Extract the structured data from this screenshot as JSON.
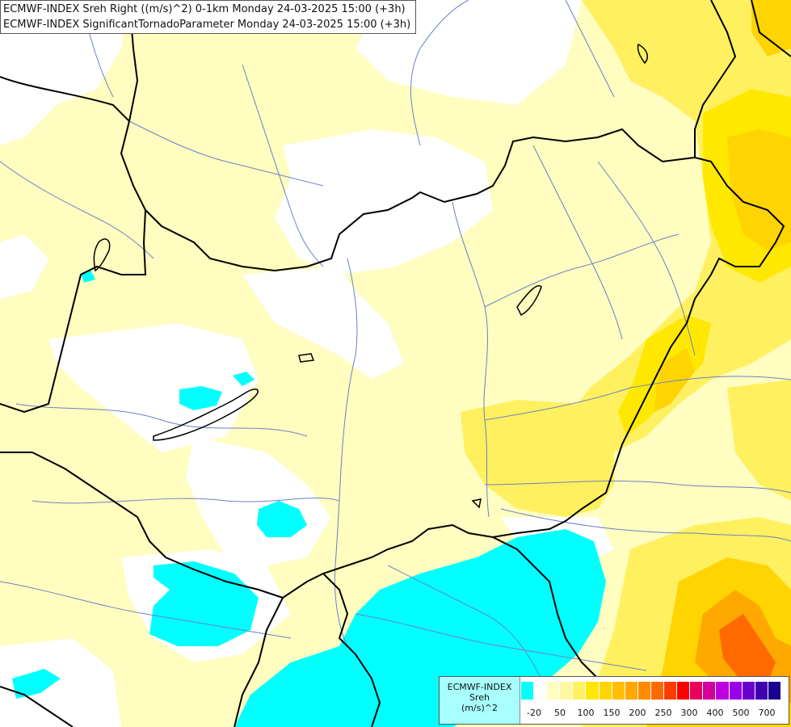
{
  "title": {
    "line1": "ECMWF-INDEX Sreh Right ((m/s)^2) 0-1km Monday 24-03-2025 15:00 (+3h)",
    "line2": "ECMWF-INDEX SignificantTornadoParameter Monday 24-03-2025 15:00 (+3h)"
  },
  "legend": {
    "name": "ECMWF-INDEX",
    "variable": "Sreh",
    "unit": "(m/s)^2",
    "colors": [
      "#00ffff",
      "#ffffff",
      "#fffdbf",
      "#fff8a0",
      "#fff060",
      "#ffe800",
      "#ffd400",
      "#ffbf00",
      "#ffa800",
      "#ff8c00",
      "#ff6a00",
      "#ff3c00",
      "#ff0000",
      "#e8005a",
      "#d4009c",
      "#c000e0",
      "#9a00e8",
      "#6a00d0",
      "#4000b0",
      "#1a0090"
    ],
    "tick_labels": [
      "-20",
      "50",
      "100",
      "150",
      "200",
      "250",
      "300",
      "400",
      "500",
      "700"
    ]
  },
  "colors": {
    "background_sreh": "#fffdbf",
    "low_sreh": "#ffffff",
    "negative_sreh": "#00ffff",
    "high_sreh": "#ffd400",
    "very_high_sreh": "#ff6a00",
    "borders": "#000000",
    "rivers": "#6a80c8"
  }
}
